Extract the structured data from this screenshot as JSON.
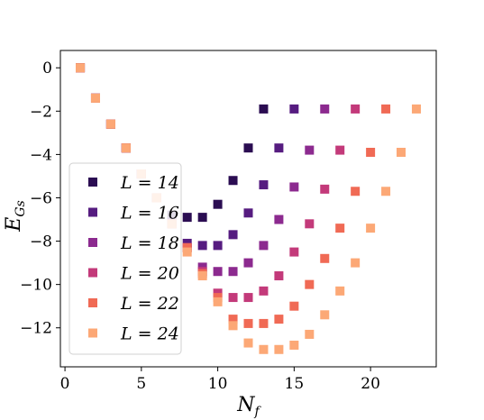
{
  "chart_data": {
    "type": "scatter",
    "xlabel": "N_f",
    "ylabel": "E_Gs",
    "xlim": [
      -0.3,
      24.3
    ],
    "ylim": [
      -13.8,
      0.8
    ],
    "xticks": [
      0,
      5,
      10,
      15,
      20
    ],
    "yticks": [
      0,
      -2,
      -4,
      -6,
      -8,
      -10,
      -12
    ],
    "legend_placement": "left-center",
    "series": [
      {
        "name": "L = 14",
        "color": "#2b0d52",
        "points": [
          [
            1,
            0
          ],
          [
            2,
            -1.4
          ],
          [
            3,
            -2.6
          ],
          [
            4,
            -3.7
          ],
          [
            5,
            -4.9
          ],
          [
            6,
            -6.0
          ],
          [
            7,
            -6.8
          ],
          [
            8,
            -6.9
          ],
          [
            9,
            -6.9
          ],
          [
            10,
            -6.3
          ],
          [
            11,
            -5.2
          ],
          [
            12,
            -3.7
          ],
          [
            13,
            -1.9
          ]
        ]
      },
      {
        "name": "L = 16",
        "color": "#561c80",
        "points": [
          [
            1,
            0
          ],
          [
            2,
            -1.4
          ],
          [
            3,
            -2.6
          ],
          [
            4,
            -3.7
          ],
          [
            5,
            -4.9
          ],
          [
            6,
            -6.0
          ],
          [
            7,
            -7.1
          ],
          [
            8,
            -8.1
          ],
          [
            9,
            -8.2
          ],
          [
            10,
            -8.2
          ],
          [
            11,
            -7.7
          ],
          [
            12,
            -6.7
          ],
          [
            13,
            -5.4
          ],
          [
            14,
            -3.7
          ],
          [
            15,
            -1.9
          ]
        ]
      },
      {
        "name": "L = 18",
        "color": "#8c2a8f",
        "points": [
          [
            1,
            0
          ],
          [
            2,
            -1.4
          ],
          [
            3,
            -2.6
          ],
          [
            4,
            -3.7
          ],
          [
            5,
            -4.9
          ],
          [
            6,
            -6.0
          ],
          [
            7,
            -7.2
          ],
          [
            8,
            -8.3
          ],
          [
            9,
            -9.2
          ],
          [
            10,
            -9.4
          ],
          [
            11,
            -9.4
          ],
          [
            12,
            -9.0
          ],
          [
            13,
            -8.2
          ],
          [
            14,
            -7.0
          ],
          [
            15,
            -5.5
          ],
          [
            16,
            -3.8
          ],
          [
            17,
            -1.9
          ]
        ]
      },
      {
        "name": "L = 20",
        "color": "#c33a7a",
        "points": [
          [
            1,
            0
          ],
          [
            2,
            -1.4
          ],
          [
            3,
            -2.6
          ],
          [
            4,
            -3.7
          ],
          [
            5,
            -4.9
          ],
          [
            6,
            -6.0
          ],
          [
            7,
            -7.2
          ],
          [
            8,
            -8.3
          ],
          [
            9,
            -9.4
          ],
          [
            10,
            -10.4
          ],
          [
            11,
            -10.6
          ],
          [
            12,
            -10.6
          ],
          [
            13,
            -10.3
          ],
          [
            14,
            -9.6
          ],
          [
            15,
            -8.5
          ],
          [
            16,
            -7.2
          ],
          [
            17,
            -5.6
          ],
          [
            18,
            -3.8
          ],
          [
            19,
            -1.9
          ]
        ]
      },
      {
        "name": "L = 22",
        "color": "#f06a55",
        "points": [
          [
            1,
            0
          ],
          [
            2,
            -1.4
          ],
          [
            3,
            -2.6
          ],
          [
            4,
            -3.7
          ],
          [
            5,
            -4.9
          ],
          [
            6,
            -6.0
          ],
          [
            7,
            -7.2
          ],
          [
            8,
            -8.3
          ],
          [
            9,
            -9.5
          ],
          [
            10,
            -10.6
          ],
          [
            11,
            -11.6
          ],
          [
            12,
            -11.8
          ],
          [
            13,
            -11.8
          ],
          [
            14,
            -11.6
          ],
          [
            15,
            -11.0
          ],
          [
            16,
            -10.0
          ],
          [
            17,
            -8.8
          ],
          [
            18,
            -7.4
          ],
          [
            19,
            -5.7
          ],
          [
            20,
            -3.9
          ],
          [
            21,
            -1.9
          ]
        ]
      },
      {
        "name": "L = 24",
        "color": "#fca876",
        "points": [
          [
            1,
            0
          ],
          [
            2,
            -1.4
          ],
          [
            3,
            -2.6
          ],
          [
            4,
            -3.7
          ],
          [
            5,
            -4.9
          ],
          [
            6,
            -6.0
          ],
          [
            7,
            -7.2
          ],
          [
            8,
            -8.5
          ],
          [
            9,
            -9.6
          ],
          [
            10,
            -10.8
          ],
          [
            11,
            -11.9
          ],
          [
            12,
            -12.7
          ],
          [
            13,
            -13.0
          ],
          [
            14,
            -13.0
          ],
          [
            15,
            -12.8
          ],
          [
            16,
            -12.3
          ],
          [
            17,
            -11.4
          ],
          [
            18,
            -10.3
          ],
          [
            19,
            -9.0
          ],
          [
            20,
            -7.4
          ],
          [
            21,
            -5.7
          ],
          [
            22,
            -3.9
          ],
          [
            23,
            -1.9
          ]
        ]
      }
    ]
  }
}
